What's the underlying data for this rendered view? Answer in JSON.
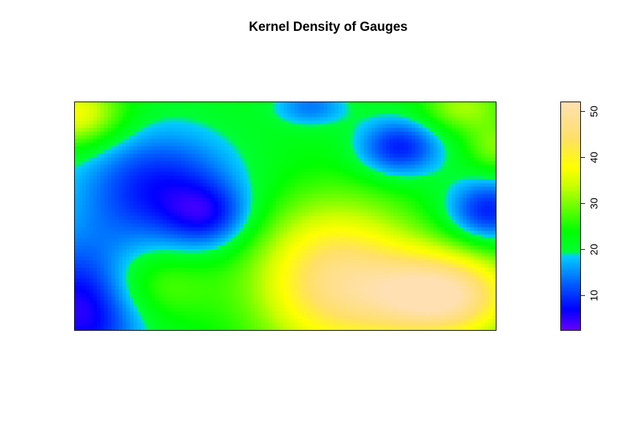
{
  "chart_data": {
    "type": "heatmap",
    "title": "Kernel Density of Gauges",
    "xlabel": "",
    "ylabel": "",
    "axes_shown": false,
    "value_range": [
      2.5,
      52
    ],
    "colorbar": {
      "position": "right",
      "ticks": [
        "10",
        "20",
        "30",
        "40",
        "50"
      ],
      "tick_values": [
        10,
        20,
        30,
        40,
        50
      ],
      "color_stops": [
        {
          "value": 2.5,
          "color": "#6600ff"
        },
        {
          "value": 7,
          "color": "#0000ff"
        },
        {
          "value": 13,
          "color": "#0066ff"
        },
        {
          "value": 18.5,
          "color": "#00ccff"
        },
        {
          "value": 19.5,
          "color": "#00ff33"
        },
        {
          "value": 24,
          "color": "#00ff00"
        },
        {
          "value": 29,
          "color": "#66ff00"
        },
        {
          "value": 34,
          "color": "#ccff00"
        },
        {
          "value": 38,
          "color": "#ffff00"
        },
        {
          "value": 44,
          "color": "#ffe066"
        },
        {
          "value": 52,
          "color": "#ffe0b3"
        }
      ]
    },
    "density_field": {
      "base_value": 22,
      "domain_x": [
        0,
        1
      ],
      "domain_y": [
        0,
        1
      ],
      "kernels": [
        {
          "cx": 0.0,
          "cy": 0.95,
          "amp": 16,
          "sx": 0.08,
          "sy": 0.1
        },
        {
          "cx": 0.02,
          "cy": 0.1,
          "amp": -18,
          "sx": 0.1,
          "sy": 0.2
        },
        {
          "cx": 0.2,
          "cy": 0.62,
          "amp": -14,
          "sx": 0.13,
          "sy": 0.18
        },
        {
          "cx": 0.32,
          "cy": 0.5,
          "amp": -10,
          "sx": 0.07,
          "sy": 0.1
        },
        {
          "cx": 0.56,
          "cy": 0.98,
          "amp": -8,
          "sx": 0.06,
          "sy": 0.06
        },
        {
          "cx": 0.77,
          "cy": 0.8,
          "amp": -14,
          "sx": 0.07,
          "sy": 0.09
        },
        {
          "cx": 0.98,
          "cy": 0.52,
          "amp": -14,
          "sx": 0.07,
          "sy": 0.1
        },
        {
          "cx": 0.62,
          "cy": 0.22,
          "amp": 24,
          "sx": 0.14,
          "sy": 0.24
        },
        {
          "cx": 0.88,
          "cy": 0.15,
          "amp": 28,
          "sx": 0.12,
          "sy": 0.14
        },
        {
          "cx": 0.92,
          "cy": 0.98,
          "amp": 10,
          "sx": 0.07,
          "sy": 0.08
        },
        {
          "cx": 1.0,
          "cy": 0.8,
          "amp": 8,
          "sx": 0.05,
          "sy": 0.08
        },
        {
          "cx": 0.18,
          "cy": 0.2,
          "amp": 8,
          "sx": 0.1,
          "sy": 0.12
        }
      ]
    }
  }
}
